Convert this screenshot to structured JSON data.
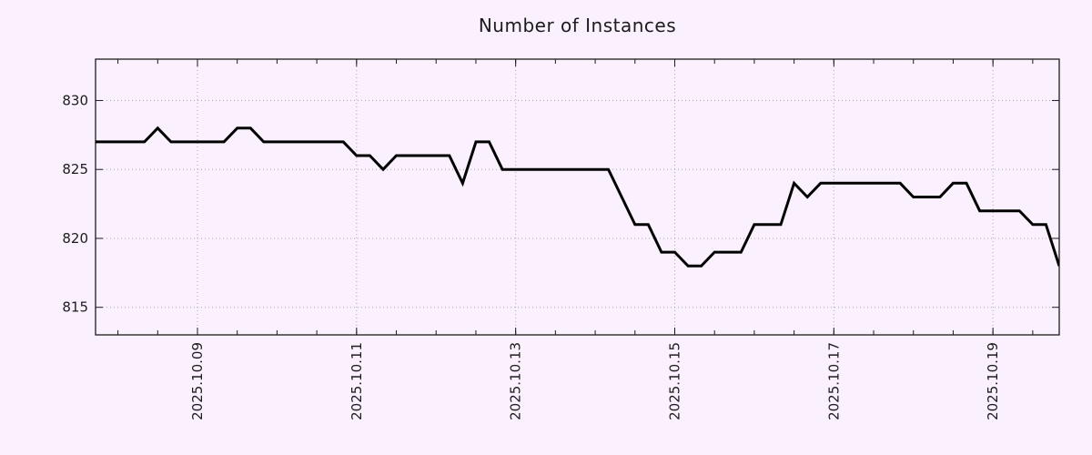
{
  "page": {
    "background_color": "#fbf0fd"
  },
  "chart_data": {
    "type": "line",
    "title": "Number of Instances",
    "xlabel": "",
    "ylabel": "",
    "legend": "none",
    "grid": true,
    "sampling_interval_hours": 4,
    "x_axis": {
      "domain_start": "2025-10-07T17:15:00",
      "domain_end": "2025-10-19T20:00:00",
      "minor_tick_interval_hours": 12,
      "major_ticks": [
        {
          "t": "2025-10-09T00:00:00",
          "label": "2025.10.09"
        },
        {
          "t": "2025-10-11T00:00:00",
          "label": "2025.10.11"
        },
        {
          "t": "2025-10-13T00:00:00",
          "label": "2025.10.13"
        },
        {
          "t": "2025-10-15T00:00:00",
          "label": "2025.10.15"
        },
        {
          "t": "2025-10-17T00:00:00",
          "label": "2025.10.17"
        },
        {
          "t": "2025-10-19T00:00:00",
          "label": "2025.10.19"
        }
      ]
    },
    "y_axis": {
      "min": 813,
      "max": 833,
      "ticks": [
        815,
        820,
        825,
        830
      ]
    },
    "series": [
      {
        "name": "instances",
        "color": "#000000",
        "points": [
          {
            "t": "2025-10-07T16:00:00",
            "v": 827
          },
          {
            "t": "2025-10-08T08:00:00",
            "v": 827
          },
          {
            "t": "2025-10-08T12:00:00",
            "v": 828
          },
          {
            "t": "2025-10-08T16:00:00",
            "v": 827
          },
          {
            "t": "2025-10-09T08:00:00",
            "v": 827
          },
          {
            "t": "2025-10-09T12:00:00",
            "v": 828
          },
          {
            "t": "2025-10-09T16:00:00",
            "v": 828
          },
          {
            "t": "2025-10-09T20:00:00",
            "v": 827
          },
          {
            "t": "2025-10-10T20:00:00",
            "v": 827
          },
          {
            "t": "2025-10-11T00:00:00",
            "v": 826
          },
          {
            "t": "2025-10-11T04:00:00",
            "v": 826
          },
          {
            "t": "2025-10-11T08:00:00",
            "v": 825
          },
          {
            "t": "2025-10-11T12:00:00",
            "v": 826
          },
          {
            "t": "2025-10-12T04:00:00",
            "v": 826
          },
          {
            "t": "2025-10-12T08:00:00",
            "v": 824
          },
          {
            "t": "2025-10-12T12:00:00",
            "v": 827
          },
          {
            "t": "2025-10-12T16:00:00",
            "v": 827
          },
          {
            "t": "2025-10-12T20:00:00",
            "v": 825
          },
          {
            "t": "2025-10-14T04:00:00",
            "v": 825
          },
          {
            "t": "2025-10-14T12:00:00",
            "v": 821
          },
          {
            "t": "2025-10-14T16:00:00",
            "v": 821
          },
          {
            "t": "2025-10-14T20:00:00",
            "v": 819
          },
          {
            "t": "2025-10-15T00:00:00",
            "v": 819
          },
          {
            "t": "2025-10-15T04:00:00",
            "v": 818
          },
          {
            "t": "2025-10-15T08:00:00",
            "v": 818
          },
          {
            "t": "2025-10-15T12:00:00",
            "v": 819
          },
          {
            "t": "2025-10-15T20:00:00",
            "v": 819
          },
          {
            "t": "2025-10-16T00:00:00",
            "v": 821
          },
          {
            "t": "2025-10-16T08:00:00",
            "v": 821
          },
          {
            "t": "2025-10-16T12:00:00",
            "v": 824
          },
          {
            "t": "2025-10-16T16:00:00",
            "v": 823
          },
          {
            "t": "2025-10-16T20:00:00",
            "v": 824
          },
          {
            "t": "2025-10-17T20:00:00",
            "v": 824
          },
          {
            "t": "2025-10-18T00:00:00",
            "v": 823
          },
          {
            "t": "2025-10-18T08:00:00",
            "v": 823
          },
          {
            "t": "2025-10-18T12:00:00",
            "v": 824
          },
          {
            "t": "2025-10-18T16:00:00",
            "v": 824
          },
          {
            "t": "2025-10-18T20:00:00",
            "v": 822
          },
          {
            "t": "2025-10-19T08:00:00",
            "v": 822
          },
          {
            "t": "2025-10-19T12:00:00",
            "v": 821
          },
          {
            "t": "2025-10-19T16:00:00",
            "v": 821
          },
          {
            "t": "2025-10-19T20:00:00",
            "v": 818
          }
        ]
      }
    ],
    "styles": {
      "line_color": "#000000",
      "line_width": 3,
      "grid_color": "#a8a8a8",
      "axis_color": "#1c1c1c",
      "text_color": "#1c1c1c",
      "tick_label_font_px": 15,
      "title_font_px": 20
    }
  }
}
